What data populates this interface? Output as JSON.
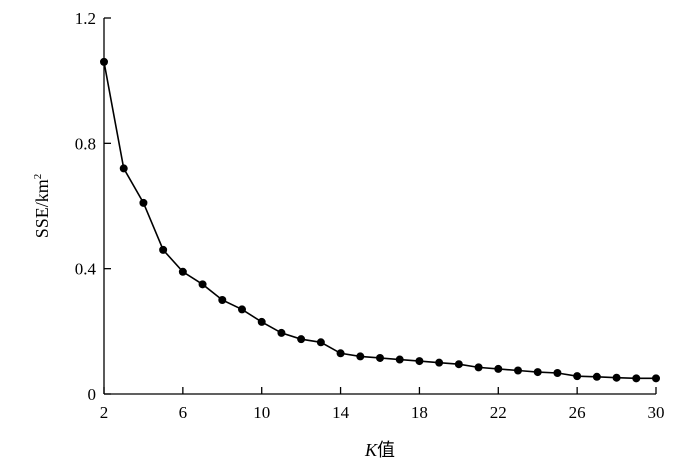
{
  "chart_data": {
    "type": "line",
    "title": "",
    "xlabel": "K值",
    "xlabel_italic_part": "K",
    "xlabel_rest": "值",
    "ylabel": "SSE/km²",
    "ylabel_base": "SSE/km",
    "ylabel_sup": "2",
    "xlim": [
      2,
      30
    ],
    "ylim": [
      0,
      1.2
    ],
    "x_ticks": [
      2,
      6,
      10,
      14,
      18,
      22,
      26,
      30
    ],
    "x_tick_labels": [
      "2",
      "6",
      "10",
      "14",
      "18",
      "22",
      "26",
      "30"
    ],
    "y_ticks": [
      0,
      0.4,
      0.8,
      1.2
    ],
    "y_tick_labels": [
      "0",
      "0.4",
      "0.8",
      "1.2"
    ],
    "grid": false,
    "marker": "filled-circle",
    "line_color": "#000000",
    "x": [
      2,
      3,
      4,
      5,
      6,
      7,
      8,
      9,
      10,
      11,
      12,
      13,
      14,
      15,
      16,
      17,
      18,
      19,
      20,
      21,
      22,
      23,
      24,
      25,
      26,
      27,
      28,
      29,
      30
    ],
    "series": [
      {
        "values": [
          1.06,
          0.72,
          0.61,
          0.46,
          0.39,
          0.35,
          0.3,
          0.27,
          0.23,
          0.195,
          0.175,
          0.165,
          0.13,
          0.12,
          0.115,
          0.11,
          0.105,
          0.1,
          0.095,
          0.085,
          0.08,
          0.075,
          0.07,
          0.067,
          0.057,
          0.055,
          0.052,
          0.05,
          0.05
        ]
      }
    ]
  }
}
